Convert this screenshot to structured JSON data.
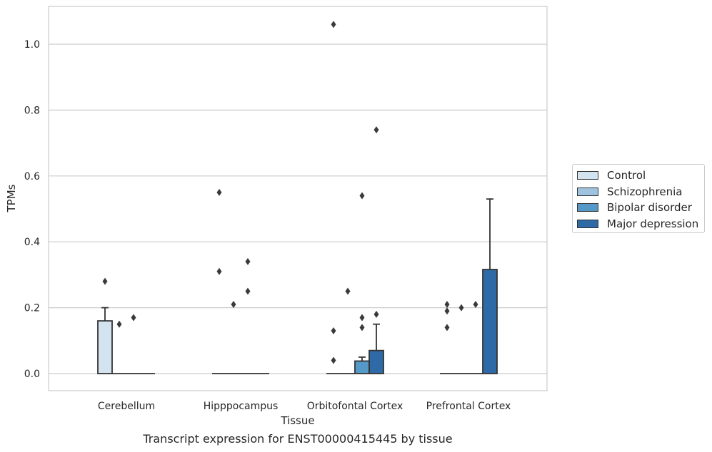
{
  "chart_data": {
    "type": "bar",
    "caption": "Transcript expression for ENST00000415445 by tissue",
    "xlabel": "Tissue",
    "ylabel": "TPMs",
    "ylim": [
      -0.05,
      1.12
    ],
    "yticks": [
      0.0,
      0.2,
      0.4,
      0.6,
      0.8,
      1.0
    ],
    "ytick_labels": [
      "0.0",
      "0.2",
      "0.4",
      "0.6",
      "0.8",
      "1.0"
    ],
    "grid": "horizontal",
    "legend_position": "right",
    "categories": [
      "Cerebellum",
      "Hipppocampus",
      "Orbitofontal Cortex",
      "Prefrontal Cortex"
    ],
    "series": [
      {
        "name": "Control",
        "color": "#d4e3f0",
        "values": [
          0.16,
          0.0,
          0.0,
          0.0
        ],
        "whisker_high": [
          0.2,
          0.0,
          0.0,
          0.0
        ],
        "outliers": [
          [
            0.28
          ],
          [
            0.55,
            0.31
          ],
          [
            0.13,
            0.04,
            1.06
          ],
          [
            0.21,
            0.19,
            0.14
          ]
        ]
      },
      {
        "name": "Schizophrenia",
        "color": "#9fc3de",
        "values": [
          0.0,
          0.0,
          0.0,
          0.0
        ],
        "whisker_high": [
          0.0,
          0.0,
          0.0,
          0.0
        ],
        "outliers": [
          [
            0.15
          ],
          [
            0.21
          ],
          [
            0.25
          ],
          [
            0.2
          ]
        ]
      },
      {
        "name": "Bipolar disorder",
        "color": "#5599c8",
        "values": [
          0.0,
          0.0,
          0.038,
          0.0
        ],
        "whisker_high": [
          0.0,
          0.0,
          0.05,
          0.0
        ],
        "outliers": [
          [
            0.17
          ],
          [
            0.34,
            0.25
          ],
          [
            0.54,
            0.17,
            0.14
          ],
          [
            0.21
          ]
        ]
      },
      {
        "name": "Major depression",
        "color": "#2e6aa6",
        "values": [
          0.0,
          0.0,
          0.07,
          0.316
        ],
        "whisker_high": [
          0.0,
          0.0,
          0.15,
          0.53
        ],
        "outliers": [
          [],
          [],
          [
            0.74,
            0.18
          ],
          []
        ]
      }
    ]
  }
}
